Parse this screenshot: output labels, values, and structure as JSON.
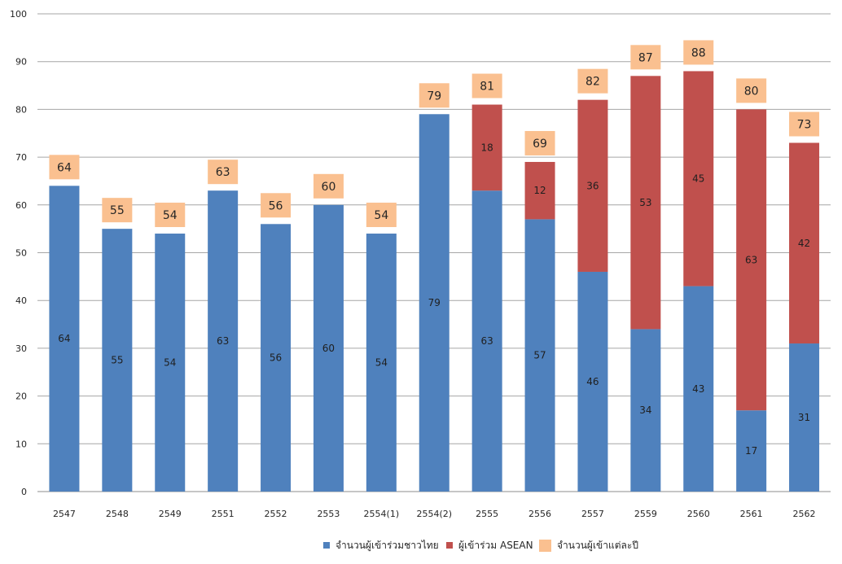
{
  "chart_data": {
    "type": "bar",
    "stacked": true,
    "title": "",
    "xlabel": "",
    "ylabel": "",
    "ylim": [
      0,
      100
    ],
    "ytick_step": 10,
    "grid": true,
    "legend_position": "bottom",
    "categories": [
      "2547",
      "2548",
      "2549",
      "2551",
      "2552",
      "2553",
      "2554(1)",
      "2554(2)",
      "2555",
      "2556",
      "2557",
      "2559",
      "2560",
      "2561",
      "2562"
    ],
    "series": [
      {
        "name": "จำนวนผู้เข้าร่วมชาวไทย",
        "color": "#4f81bd",
        "values": [
          64,
          55,
          54,
          63,
          56,
          60,
          54,
          79,
          63,
          57,
          46,
          34,
          43,
          17,
          31
        ],
        "labels": [
          "64",
          "55",
          "54",
          "63",
          "56",
          "60",
          "54",
          "79",
          "63",
          "57",
          "46",
          "34",
          "43",
          "17",
          "31"
        ]
      },
      {
        "name": "ผู้เข้าร่วม ASEAN",
        "color": "#c0504d",
        "values": [
          0,
          0,
          0,
          0,
          0,
          0,
          0,
          0,
          18,
          12,
          36,
          53,
          45,
          63,
          42
        ],
        "labels": [
          "",
          "",
          "",
          "",
          "",
          "",
          "",
          "",
          "18",
          "12",
          "36",
          "53",
          "45",
          "63",
          "42"
        ]
      }
    ],
    "totals": {
      "name": "จำนวนผู้เข้าแต่ละปี",
      "color": "#fac090",
      "values": [
        64,
        55,
        54,
        63,
        56,
        60,
        54,
        79,
        81,
        69,
        82,
        87,
        88,
        80,
        73
      ],
      "labels": [
        "64",
        "55",
        "54",
        "63",
        "56",
        "60",
        "54",
        "79",
        "81",
        "69",
        "82",
        "87",
        "88",
        "80",
        "73"
      ]
    },
    "yticks": [
      "0",
      "10",
      "20",
      "30",
      "40",
      "50",
      "60",
      "70",
      "80",
      "90",
      "100"
    ]
  }
}
